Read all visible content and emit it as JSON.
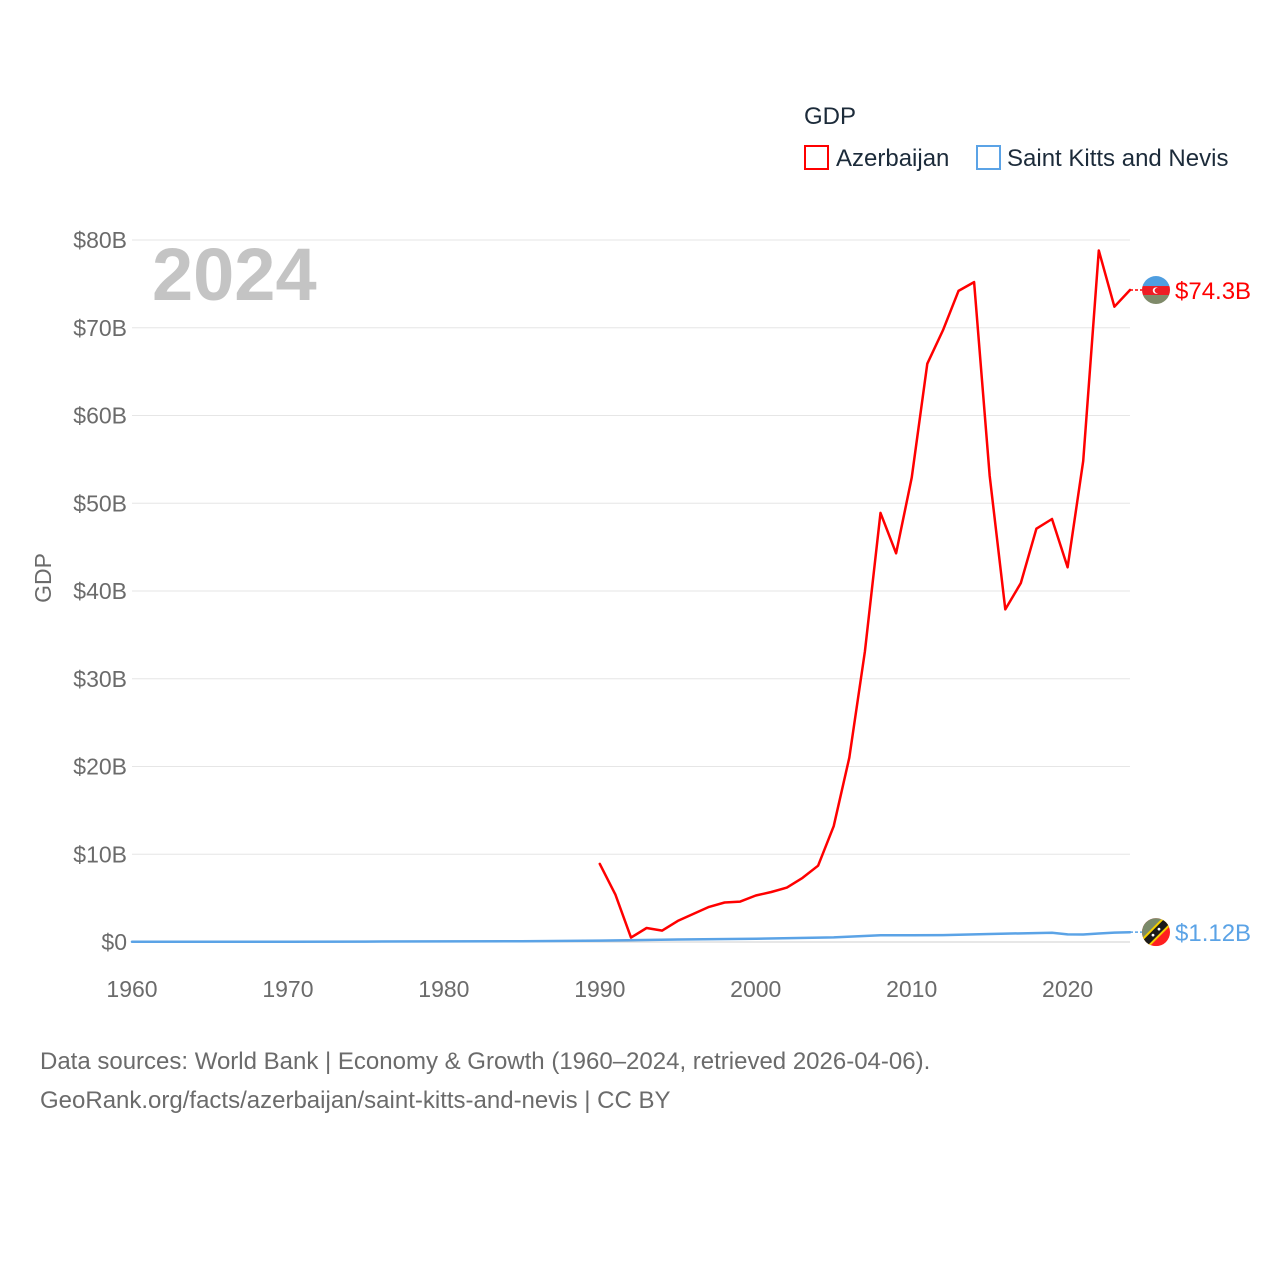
{
  "chart_data": {
    "type": "line",
    "title": "GDP",
    "year_label": "2024",
    "ylabel": "GDP",
    "xlabel": "",
    "xlim": [
      1960,
      2024
    ],
    "ylim": [
      0,
      80
    ],
    "units": "billion USD",
    "x_ticks": [
      1960,
      1970,
      1980,
      1990,
      2000,
      2010,
      2020
    ],
    "x_tick_labels": [
      "1960",
      "1970",
      "1980",
      "1990",
      "2000",
      "2010",
      "2020"
    ],
    "y_ticks": [
      0,
      10,
      20,
      30,
      40,
      50,
      60,
      70,
      80
    ],
    "y_tick_labels": [
      "$0",
      "$10B",
      "$20B",
      "$30B",
      "$40B",
      "$50B",
      "$60B",
      "$70B",
      "$80B"
    ],
    "grid": true,
    "legend_position": "top-right",
    "series": [
      {
        "name": "Azerbaijan",
        "color": "#ff0000",
        "end_label": "$74.3B",
        "flag_icon": "azerbaijan-flag-icon",
        "x": [
          1990,
          1991,
          1992,
          1993,
          1994,
          1995,
          1996,
          1997,
          1998,
          1999,
          2000,
          2001,
          2002,
          2003,
          2004,
          2005,
          2006,
          2007,
          2008,
          2009,
          2010,
          2011,
          2012,
          2013,
          2014,
          2015,
          2016,
          2017,
          2018,
          2019,
          2020,
          2021,
          2022,
          2023,
          2024
        ],
        "values": [
          8.9,
          5.4,
          0.5,
          1.6,
          1.3,
          2.4,
          3.2,
          4.0,
          4.5,
          4.6,
          5.3,
          5.7,
          6.2,
          7.3,
          8.7,
          13.2,
          21.0,
          33.1,
          48.9,
          44.3,
          52.9,
          65.9,
          69.7,
          74.2,
          75.2,
          53.1,
          37.9,
          40.9,
          47.1,
          48.2,
          42.7,
          54.8,
          78.8,
          72.4,
          74.3
        ]
      },
      {
        "name": "Saint Kitts and Nevis",
        "color": "#5ba3e6",
        "end_label": "$1.12B",
        "flag_icon": "saint-kitts-and-nevis-flag-icon",
        "x": [
          1960,
          1965,
          1970,
          1975,
          1980,
          1985,
          1990,
          1995,
          2000,
          2005,
          2008,
          2010,
          2012,
          2015,
          2019,
          2020,
          2021,
          2022,
          2023,
          2024
        ],
        "values": [
          0.02,
          0.02,
          0.03,
          0.04,
          0.07,
          0.09,
          0.16,
          0.28,
          0.38,
          0.52,
          0.77,
          0.77,
          0.79,
          0.91,
          1.06,
          0.87,
          0.86,
          0.97,
          1.07,
          1.12
        ]
      }
    ]
  },
  "footer": {
    "source_line": "Data sources: World Bank | Economy & Growth (1960–2024, retrieved 2026-04-06).",
    "url_line": "GeoRank.org/facts/azerbaijan/saint-kitts-and-nevis | CC BY"
  }
}
